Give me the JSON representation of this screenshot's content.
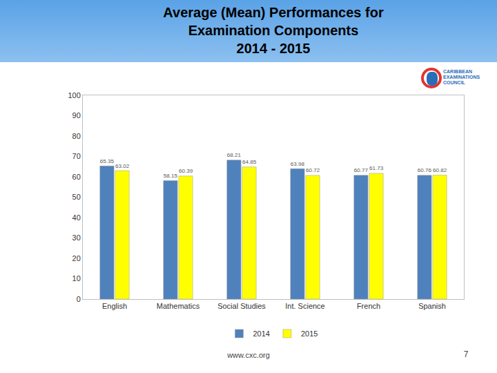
{
  "chart_data": {
    "type": "bar",
    "title": "Average (Mean) Performances for\nExamination Components\n2014 - 2015",
    "categories": [
      "English",
      "Mathematics",
      "Social Studies",
      "Int. Science",
      "French",
      "Spanish"
    ],
    "series": [
      {
        "name": "2014",
        "color": "#4f81bd",
        "values": [
          65.35,
          58.15,
          68.21,
          63.98,
          60.77,
          60.76
        ]
      },
      {
        "name": "2015",
        "color": "#ffff00",
        "values": [
          63.02,
          60.39,
          64.85,
          60.72,
          61.73,
          60.82
        ]
      }
    ],
    "ylim": [
      0,
      100
    ],
    "yticks": [
      0,
      10,
      20,
      30,
      40,
      50,
      60,
      70,
      80,
      90,
      100
    ],
    "grid": false,
    "legend": "bottom",
    "data_labels": true
  },
  "page": {
    "logo": "CARIBBEAN\nEXAMINATIONS\nCOUNCIL",
    "footer": "www.cxc.org",
    "page_number": "7"
  }
}
